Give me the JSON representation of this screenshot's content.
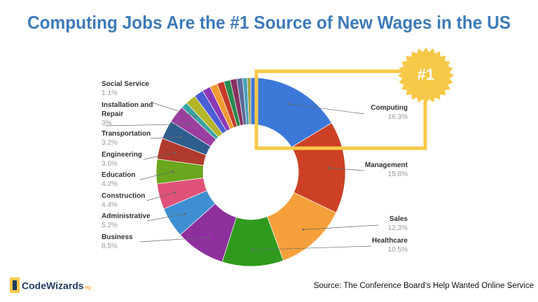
{
  "chart_data": {
    "type": "pie",
    "donut": true,
    "title": "Computing Jobs Are the #1 Source of New Wages in the US",
    "categories": [
      "Computing",
      "Management",
      "Sales",
      "Healthcare",
      "Business",
      "Administrative",
      "Construction",
      "Education",
      "Engineering",
      "Transportation",
      "Installation and Repair",
      "Social Service",
      null,
      null,
      null,
      null,
      null,
      null,
      null,
      null,
      null,
      null
    ],
    "values": [
      16.3,
      15.8,
      12.3,
      10.5,
      8.5,
      5.2,
      4.4,
      4.2,
      3.6,
      3.2,
      3,
      1.1,
      1.8,
      1.6,
      1.4,
      1.3,
      1.2,
      1.1,
      1.1,
      1.0,
      0.8,
      0.6
    ],
    "value_labels": [
      "16.3%",
      "15.8%",
      "12.3%",
      "10.5%",
      "8.5%",
      "5.2%",
      "4.4%",
      "4.2%",
      "3.6%",
      "3.2%",
      "3%",
      "1.1%",
      null,
      null,
      null,
      null,
      null,
      null,
      null,
      null,
      null,
      null
    ],
    "colors": [
      "#3c78d8",
      "#cc4125",
      "#f6a03b",
      "#2f9a1e",
      "#8e2f9e",
      "#3d8fd1",
      "#e0527a",
      "#6aa61e",
      "#b03a2e",
      "#2e5e8e",
      "#9a3fa0",
      "#3aa3a0",
      "#b5b52a",
      "#4a5fd6",
      "#8b38b8",
      "#f09a30",
      "#c43a2a",
      "#2a8a50",
      "#8a3060",
      "#5a6a9a",
      "#4aa0c0",
      "#a0a040"
    ],
    "badge": "#1"
  },
  "source": "Source: The Conference Board’s Help Wanted Online Service",
  "logo": {
    "name": "CodeWizards",
    "suffix": "HQ"
  }
}
